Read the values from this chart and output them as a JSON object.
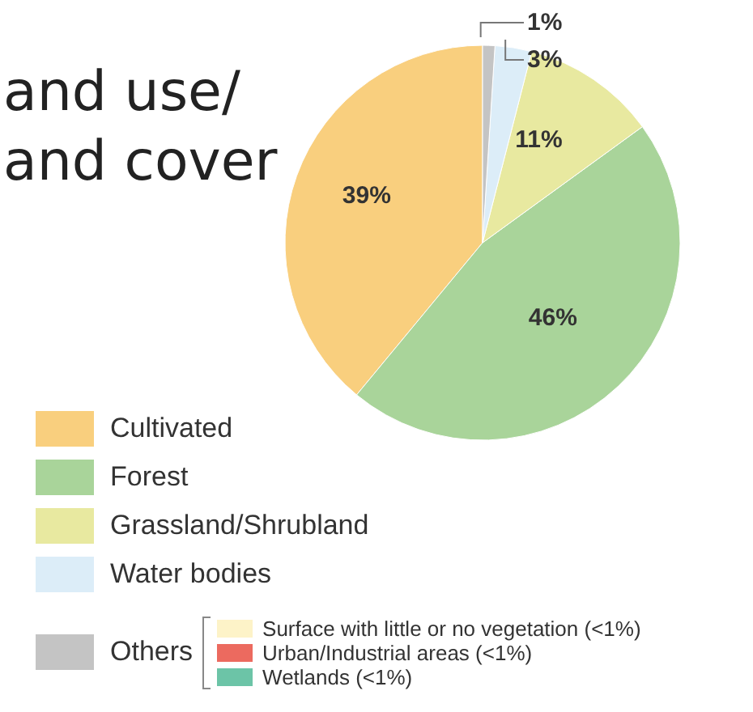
{
  "chart_data": {
    "type": "pie",
    "title": "and use/\nand cover",
    "categories": [
      "Cultivated",
      "Forest",
      "Grassland/Shrubland",
      "Water bodies",
      "Others"
    ],
    "values": [
      39,
      46,
      11,
      3,
      1
    ],
    "colors": [
      "#f9cf7e",
      "#a9d49a",
      "#e8e9a0",
      "#dcedf8",
      "#c4c4c4"
    ],
    "value_labels": [
      "39%",
      "46%",
      "11%",
      "3%",
      "1%"
    ],
    "legend": "bottom left",
    "annotations": [
      "Surface with little or no vegetation (<1%)",
      "Urban/Industrial areas (<1%)",
      "Wetlands (<1%)"
    ]
  }
}
